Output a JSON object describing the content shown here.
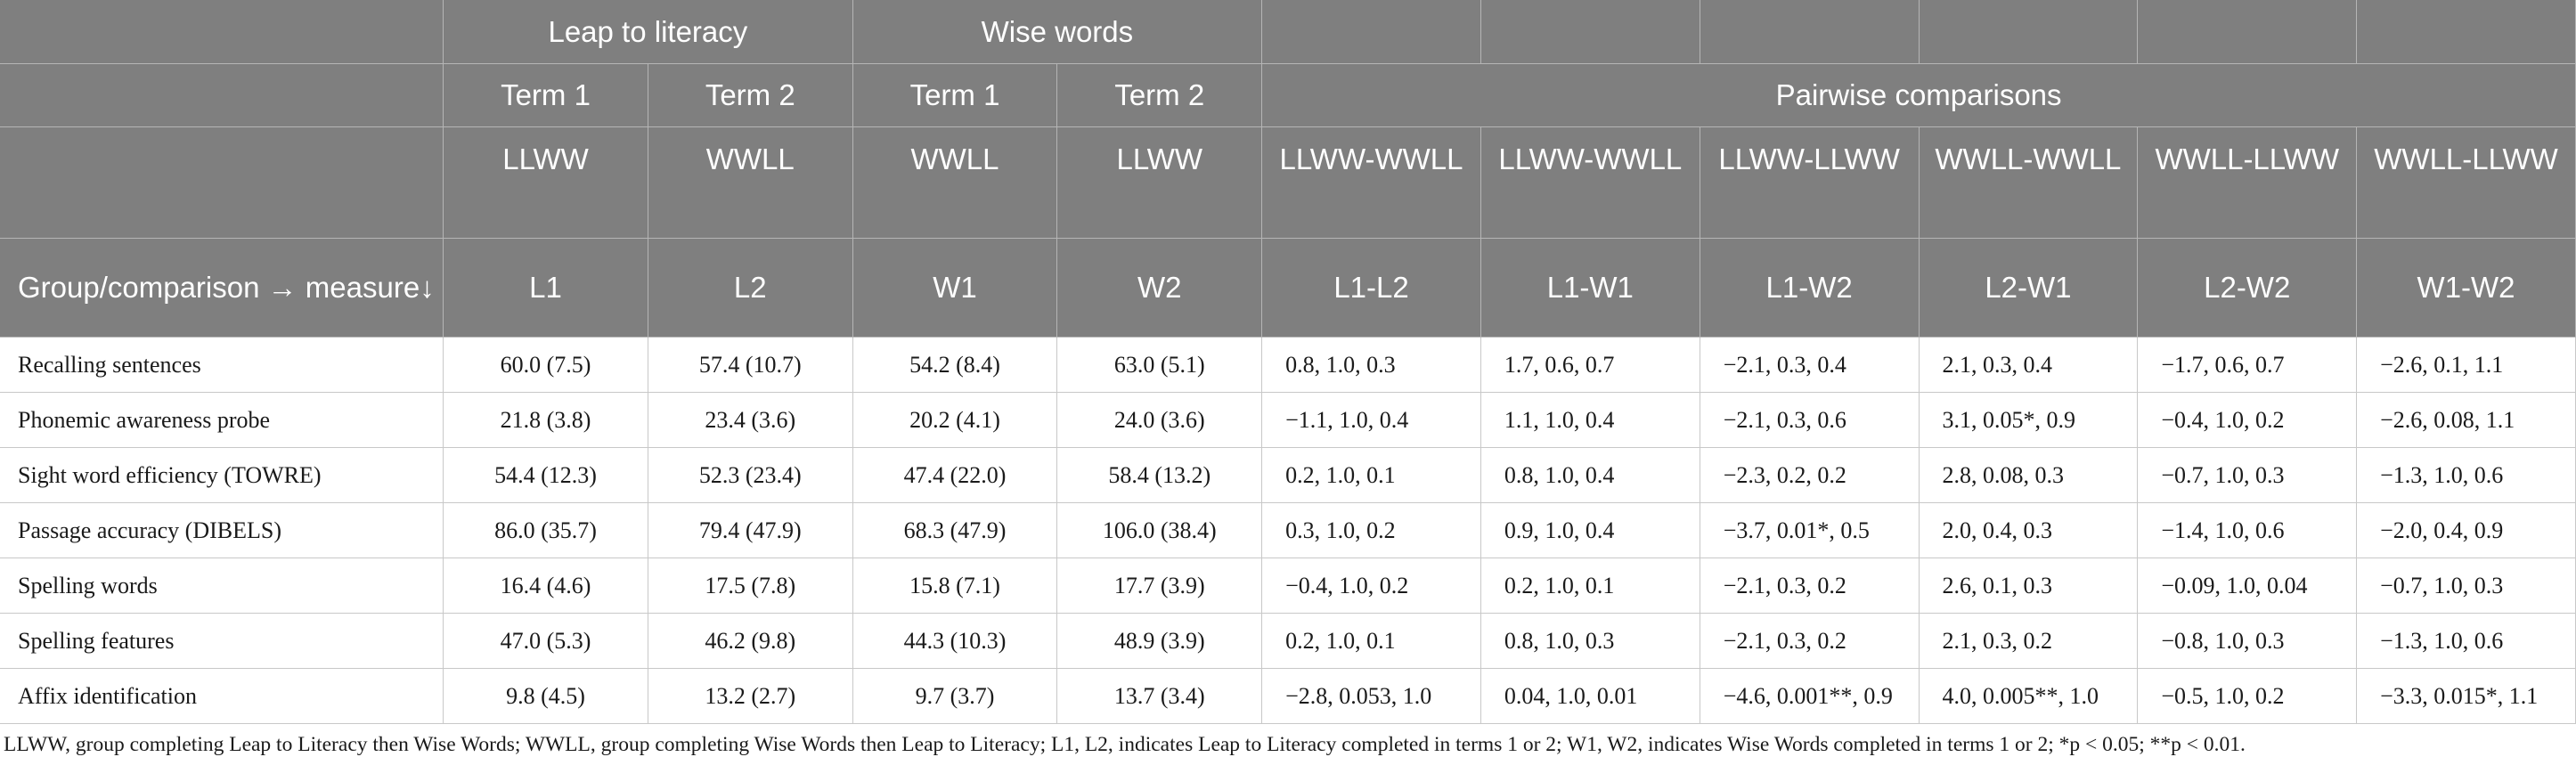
{
  "header": {
    "row1": {
      "group_a": "Leap to literacy",
      "group_b": "Wise words"
    },
    "row2": {
      "terms": [
        "Term 1",
        "Term 2",
        "Term 1",
        "Term 2"
      ],
      "pairwise": "Pairwise comparisons"
    },
    "row3": {
      "groups": [
        "LLWW",
        "WWLL",
        "WWLL",
        "LLWW"
      ],
      "pairs": [
        "LLWW-WWLL",
        "LLWW-WWLL",
        "LLWW-LLWW",
        "WWLL-WWLL",
        "WWLL-LLWW",
        "WWLL-LLWW"
      ]
    },
    "row4": {
      "label": "Group/comparison → measure↓",
      "codes": [
        "L1",
        "L2",
        "W1",
        "W2"
      ],
      "comparisons": [
        "L1-L2",
        "L1-W1",
        "L1-W2",
        "L2-W1",
        "L2-W2",
        "W1-W2"
      ]
    }
  },
  "rows": [
    {
      "measure": "Recalling sentences",
      "cells": [
        "60.0 (7.5)",
        "57.4 (10.7)",
        "54.2 (8.4)",
        "63.0 (5.1)",
        "0.8, 1.0, 0.3",
        "1.7, 0.6, 0.7",
        "−2.1, 0.3, 0.4",
        "2.1, 0.3, 0.4",
        "−1.7, 0.6, 0.7",
        "−2.6, 0.1, 1.1"
      ]
    },
    {
      "measure": "Phonemic awareness probe",
      "cells": [
        "21.8 (3.8)",
        "23.4 (3.6)",
        "20.2 (4.1)",
        "24.0 (3.6)",
        "−1.1, 1.0, 0.4",
        "1.1, 1.0, 0.4",
        "−2.1, 0.3, 0.6",
        "3.1, 0.05*, 0.9",
        "−0.4, 1.0, 0.2",
        "−2.6, 0.08, 1.1"
      ]
    },
    {
      "measure": "Sight word efficiency (TOWRE)",
      "cells": [
        "54.4 (12.3)",
        "52.3 (23.4)",
        "47.4 (22.0)",
        "58.4 (13.2)",
        "0.2, 1.0, 0.1",
        "0.8, 1.0, 0.4",
        "−2.3, 0.2, 0.2",
        "2.8, 0.08, 0.3",
        "−0.7, 1.0, 0.3",
        "−1.3, 1.0, 0.6"
      ]
    },
    {
      "measure": "Passage accuracy (DIBELS)",
      "cells": [
        "86.0 (35.7)",
        "79.4 (47.9)",
        "68.3 (47.9)",
        "106.0 (38.4)",
        "0.3, 1.0, 0.2",
        "0.9, 1.0, 0.4",
        "−3.7, 0.01*, 0.5",
        "2.0, 0.4, 0.3",
        "−1.4, 1.0, 0.6",
        "−2.0, 0.4, 0.9"
      ]
    },
    {
      "measure": "Spelling words",
      "cells": [
        "16.4 (4.6)",
        "17.5 (7.8)",
        "15.8 (7.1)",
        "17.7 (3.9)",
        "−0.4, 1.0, 0.2",
        "0.2, 1.0, 0.1",
        "−2.1, 0.3, 0.2",
        "2.6, 0.1, 0.3",
        "−0.09, 1.0, 0.04",
        "−0.7, 1.0, 0.3"
      ]
    },
    {
      "measure": "Spelling features",
      "cells": [
        "47.0 (5.3)",
        "46.2 (9.8)",
        "44.3 (10.3)",
        "48.9 (3.9)",
        "0.2, 1.0, 0.1",
        "0.8, 1.0, 0.3",
        "−2.1, 0.3, 0.2",
        "2.1, 0.3, 0.2",
        "−0.8, 1.0, 0.3",
        "−1.3, 1.0, 0.6"
      ]
    },
    {
      "measure": "Affix identification",
      "cells": [
        "9.8 (4.5)",
        "13.2 (2.7)",
        "9.7 (3.7)",
        "13.7 (3.4)",
        "−2.8, 0.053, 1.0",
        "0.04, 1.0, 0.01",
        "−4.6, 0.001**, 0.9",
        "4.0, 0.005**, 1.0",
        "−0.5, 1.0, 0.2",
        "−3.3, 0.015*, 1.1"
      ]
    }
  ],
  "footnote": "LLWW, group completing Leap to Literacy then Wise Words; WWLL, group completing Wise Words then Leap to Literacy; L1, L2, indicates Leap to Literacy completed in terms 1 or 2; W1, W2, indicates Wise Words completed in terms 1 or 2; *p < 0.05; **p < 0.01."
}
